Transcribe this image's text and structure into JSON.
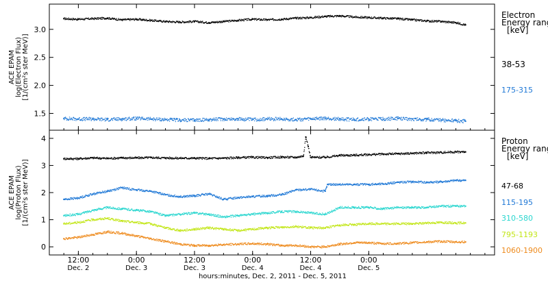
{
  "chart_data": [
    {
      "type": "scatter",
      "ylabel_lines": [
        "ACE EPAM",
        "log(Electron Flux)",
        "[1/(cm²s ster MeV)]"
      ],
      "ylim": [
        1.2,
        3.45
      ],
      "yticks": [
        1.5,
        2.0,
        2.5,
        3.0
      ],
      "ytick_labels": [
        "1.5",
        "2.0",
        "2.5",
        "3.0"
      ],
      "legend_title_lines": [
        "Electron",
        "Energy ranges",
        "[keV]"
      ],
      "series": [
        {
          "name": "38-53",
          "color": "#000000",
          "x": [
            0,
            6,
            12,
            18,
            24,
            30,
            36,
            42,
            48,
            54,
            60,
            66,
            72,
            78,
            84,
            90,
            96,
            102,
            108,
            114,
            120,
            126,
            132,
            138,
            144,
            150,
            156,
            162,
            166
          ],
          "values": [
            3.19,
            3.18,
            3.19,
            3.2,
            3.17,
            3.18,
            3.16,
            3.14,
            3.13,
            3.14,
            3.12,
            3.14,
            3.16,
            3.18,
            3.17,
            3.18,
            3.2,
            3.21,
            3.23,
            3.24,
            3.22,
            3.21,
            3.2,
            3.19,
            3.17,
            3.15,
            3.14,
            3.12,
            3.08
          ]
        },
        {
          "name": "175-315",
          "color": "#1f78d6",
          "x": [
            0,
            6,
            12,
            18,
            24,
            30,
            36,
            42,
            48,
            54,
            60,
            66,
            72,
            78,
            84,
            90,
            96,
            102,
            108,
            114,
            120,
            126,
            132,
            138,
            144,
            150,
            156,
            162,
            166
          ],
          "values": [
            1.41,
            1.4,
            1.4,
            1.39,
            1.4,
            1.41,
            1.4,
            1.39,
            1.38,
            1.38,
            1.39,
            1.4,
            1.4,
            1.39,
            1.4,
            1.4,
            1.39,
            1.4,
            1.41,
            1.4,
            1.39,
            1.4,
            1.4,
            1.41,
            1.4,
            1.39,
            1.38,
            1.37,
            1.36
          ]
        }
      ]
    },
    {
      "type": "scatter",
      "ylabel_lines": [
        "ACE EPAM",
        "log(Proton Flux)",
        "[1/(cm²s ster MeV)]"
      ],
      "ylim": [
        -0.3,
        4.3
      ],
      "yticks": [
        0,
        1,
        2,
        3,
        4
      ],
      "ytick_labels": [
        "0",
        "1",
        "2",
        "3",
        "4"
      ],
      "legend_title_lines": [
        "Proton",
        "Energy ranges",
        "[keV]"
      ],
      "series": [
        {
          "name": "47-68",
          "color": "#000000",
          "x": [
            0,
            6,
            12,
            18,
            24,
            30,
            36,
            42,
            48,
            54,
            60,
            66,
            72,
            78,
            84,
            90,
            96,
            99,
            100,
            101,
            102,
            104,
            108,
            114,
            120,
            126,
            132,
            138,
            144,
            150,
            156,
            162,
            166
          ],
          "values": [
            3.25,
            3.25,
            3.28,
            3.26,
            3.28,
            3.28,
            3.29,
            3.28,
            3.27,
            3.27,
            3.26,
            3.27,
            3.29,
            3.3,
            3.29,
            3.31,
            3.3,
            3.35,
            4.05,
            3.7,
            3.3,
            3.3,
            3.3,
            3.37,
            3.38,
            3.4,
            3.42,
            3.43,
            3.45,
            3.47,
            3.48,
            3.5,
            3.5
          ]
        },
        {
          "name": "115-195",
          "color": "#1f78d6",
          "x": [
            0,
            6,
            12,
            18,
            24,
            30,
            36,
            42,
            48,
            54,
            60,
            66,
            72,
            78,
            84,
            90,
            96,
            102,
            108,
            109,
            114,
            120,
            126,
            132,
            138,
            144,
            150,
            156,
            162,
            166
          ],
          "values": [
            1.75,
            1.8,
            1.95,
            2.05,
            2.18,
            2.1,
            2.05,
            1.92,
            1.85,
            1.88,
            1.95,
            1.75,
            1.82,
            1.85,
            1.88,
            1.92,
            2.1,
            2.12,
            2.05,
            2.3,
            2.3,
            2.3,
            2.3,
            2.32,
            2.38,
            2.4,
            2.38,
            2.4,
            2.45,
            2.45
          ]
        },
        {
          "name": "310-580",
          "color": "#29d6cf",
          "x": [
            0,
            6,
            12,
            18,
            24,
            30,
            36,
            42,
            48,
            54,
            60,
            66,
            72,
            78,
            84,
            90,
            96,
            102,
            108,
            114,
            120,
            126,
            132,
            138,
            144,
            150,
            156,
            162,
            166
          ],
          "values": [
            1.15,
            1.2,
            1.35,
            1.45,
            1.4,
            1.35,
            1.3,
            1.15,
            1.2,
            1.25,
            1.2,
            1.1,
            1.15,
            1.2,
            1.25,
            1.3,
            1.3,
            1.25,
            1.2,
            1.45,
            1.45,
            1.45,
            1.4,
            1.45,
            1.45,
            1.45,
            1.5,
            1.5,
            1.5
          ]
        },
        {
          "name": "795-1193",
          "color": "#c2e617",
          "x": [
            0,
            6,
            12,
            18,
            24,
            30,
            36,
            42,
            48,
            54,
            60,
            66,
            72,
            78,
            84,
            90,
            96,
            102,
            108,
            114,
            120,
            126,
            132,
            138,
            144,
            150,
            156,
            162,
            166
          ],
          "values": [
            0.85,
            0.9,
            1.0,
            1.05,
            0.95,
            0.9,
            0.85,
            0.7,
            0.6,
            0.65,
            0.7,
            0.65,
            0.6,
            0.65,
            0.7,
            0.72,
            0.75,
            0.7,
            0.7,
            0.8,
            0.82,
            0.85,
            0.85,
            0.85,
            0.85,
            0.88,
            0.9,
            0.88,
            0.88
          ]
        },
        {
          "name": "1060-1900",
          "color": "#ee8a1c",
          "x": [
            0,
            6,
            12,
            18,
            24,
            30,
            36,
            42,
            48,
            54,
            60,
            66,
            72,
            78,
            84,
            90,
            96,
            102,
            108,
            114,
            120,
            126,
            132,
            138,
            144,
            150,
            156,
            162,
            166
          ],
          "values": [
            0.3,
            0.35,
            0.45,
            0.55,
            0.5,
            0.4,
            0.3,
            0.2,
            0.1,
            0.05,
            0.05,
            0.08,
            0.1,
            0.12,
            0.1,
            0.05,
            0.05,
            0.0,
            0.0,
            0.1,
            0.15,
            0.15,
            0.12,
            0.12,
            0.15,
            0.18,
            0.2,
            0.18,
            0.18
          ]
        }
      ]
    }
  ],
  "xaxis": {
    "label": "hours:minutes, Dec.  2, 2011 - Dec.  5, 2011",
    "xlim": [
      -6,
      178
    ],
    "ticks": [
      {
        "x": 6,
        "time": "12:00",
        "day": "Dec. 2"
      },
      {
        "x": 30,
        "time": "0:00",
        "day": "Dec. 3"
      },
      {
        "x": 54,
        "time": "12:00",
        "day": "Dec. 3"
      },
      {
        "x": 78,
        "time": "0:00",
        "day": "Dec. 4"
      },
      {
        "x": 102,
        "time": "12:00",
        "day": "Dec. 4"
      },
      {
        "x": 126,
        "time": "0:00",
        "day": "Dec. 5"
      }
    ]
  }
}
